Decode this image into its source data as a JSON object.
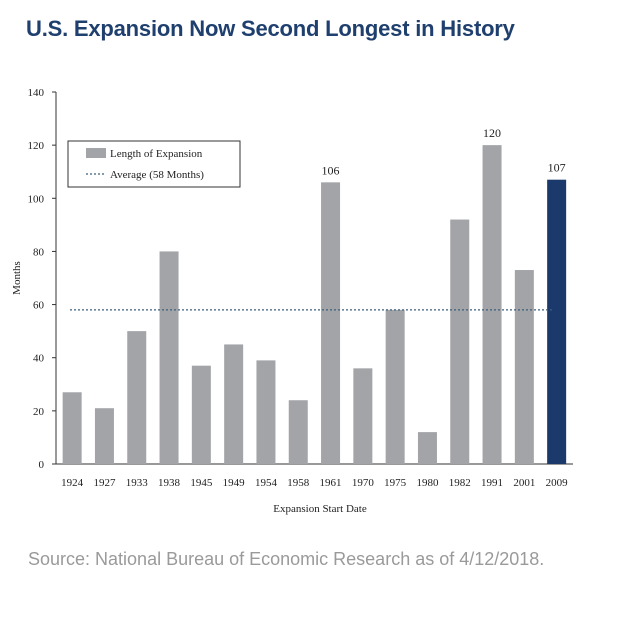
{
  "header": {
    "title": "U.S. Expansion Now Second Longest in History"
  },
  "footer": {
    "source": "Source: National Bureau of Economic Research as of 4/12/2018."
  },
  "colors": {
    "bar": "#a2a4a7",
    "highlight": "#1b3a6b",
    "average_line": "#3b5f7a"
  },
  "chart_data": {
    "type": "bar",
    "categories": [
      "1924",
      "1927",
      "1933",
      "1938",
      "1945",
      "1949",
      "1954",
      "1958",
      "1961",
      "1970",
      "1975",
      "1980",
      "1982",
      "1991",
      "2001",
      "2009"
    ],
    "series": [
      {
        "name": "Length of Expansion",
        "values": [
          27,
          21,
          50,
          80,
          37,
          45,
          39,
          24,
          106,
          36,
          58,
          12,
          92,
          120,
          73,
          107
        ]
      }
    ],
    "reference_line": {
      "name": "Average (58 Months)",
      "value": 58
    },
    "highlight_category": "2009",
    "data_labels": [
      {
        "category": "1961",
        "text": "106"
      },
      {
        "category": "1991",
        "text": "120"
      },
      {
        "category": "2009",
        "text": "107"
      }
    ],
    "xlabel": "Expansion Start Date",
    "ylabel": "Months",
    "ylim": [
      0,
      140
    ],
    "yticks": [
      0,
      20,
      40,
      60,
      80,
      100,
      120,
      140
    ],
    "grid": false,
    "legend_position": "top-left"
  }
}
